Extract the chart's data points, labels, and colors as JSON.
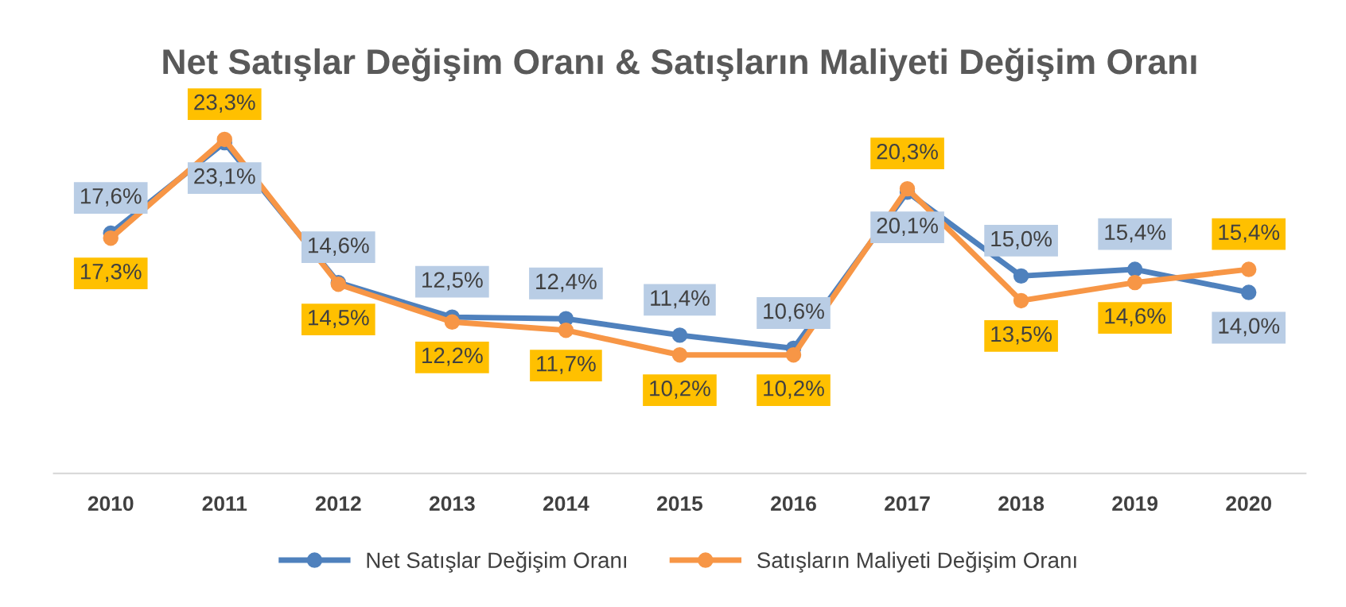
{
  "chart_data": {
    "type": "line",
    "title": "Net Satışlar Değişim Oranı & Satışların Maliyeti Değişim Oranı",
    "categories": [
      "2010",
      "2011",
      "2012",
      "2013",
      "2014",
      "2015",
      "2016",
      "2017",
      "2018",
      "2019",
      "2020"
    ],
    "series": [
      {
        "name": "Net Satışlar Değişim Oranı",
        "color": "#4f81bd",
        "values": [
          17.6,
          23.1,
          14.6,
          12.5,
          12.4,
          11.4,
          10.6,
          20.1,
          15.0,
          15.4,
          14.0
        ],
        "value_labels": [
          "17,6%",
          "23,1%",
          "14,6%",
          "12,5%",
          "12,4%",
          "11,4%",
          "10,6%",
          "20,1%",
          "15,0%",
          "15,4%",
          "14,0%"
        ]
      },
      {
        "name": "Satışların Maliyeti Değişim Oranı",
        "color": "#f79646",
        "values": [
          17.3,
          23.3,
          14.5,
          12.2,
          11.7,
          10.2,
          10.2,
          20.3,
          13.5,
          14.6,
          15.4
        ],
        "value_labels": [
          "17,3%",
          "23,3%",
          "14,5%",
          "12,2%",
          "11,7%",
          "10,2%",
          "10,2%",
          "20,3%",
          "13,5%",
          "14,6%",
          "15,4%"
        ]
      }
    ],
    "marker": "circle",
    "line_style": "solid",
    "grid": false,
    "legend": "bottom",
    "tick_labels": "x"
  }
}
